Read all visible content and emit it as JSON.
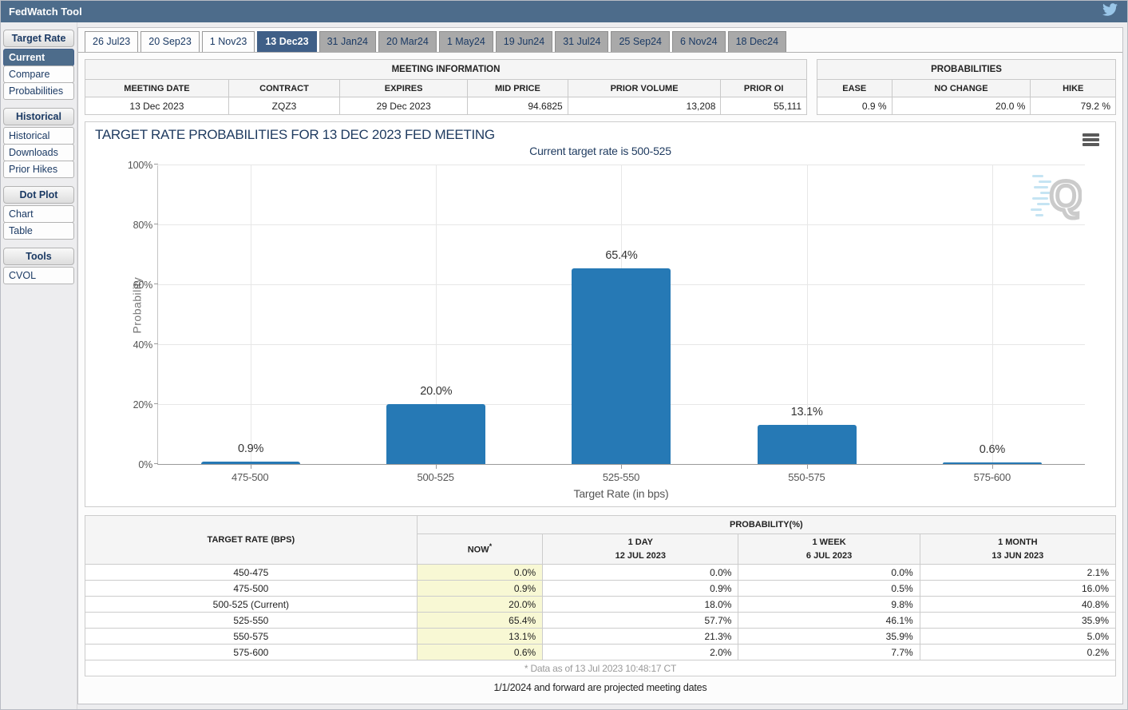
{
  "colors": {
    "header_bg": "#4d6c8b",
    "selected_tab_bg": "#3f5f87",
    "bar_color": "#2679b5",
    "now_highlight": "#f8f8d4",
    "twitter_blue": "#9ac6e8"
  },
  "header": {
    "title": "FedWatch Tool",
    "icon": "twitter-bird-icon"
  },
  "sidebar": {
    "sections": [
      {
        "header": "Target Rate",
        "items": [
          {
            "label": "Current",
            "selected": true
          },
          {
            "label": "Compare",
            "selected": false
          },
          {
            "label": "Probabilities",
            "selected": false
          }
        ]
      },
      {
        "header": "Historical",
        "items": [
          {
            "label": "Historical",
            "selected": false
          },
          {
            "label": "Downloads",
            "selected": false
          },
          {
            "label": "Prior Hikes",
            "selected": false
          }
        ]
      },
      {
        "header": "Dot Plot",
        "items": [
          {
            "label": "Chart",
            "selected": false
          },
          {
            "label": "Table",
            "selected": false
          }
        ]
      },
      {
        "header": "Tools",
        "items": [
          {
            "label": "CVOL",
            "selected": false
          }
        ]
      }
    ]
  },
  "tabs": [
    {
      "label": "26 Jul23",
      "variant": "light"
    },
    {
      "label": "20 Sep23",
      "variant": "light"
    },
    {
      "label": "1 Nov23",
      "variant": "light"
    },
    {
      "label": "13 Dec23",
      "variant": "selected"
    },
    {
      "label": "31 Jan24",
      "variant": "gray"
    },
    {
      "label": "20 Mar24",
      "variant": "gray"
    },
    {
      "label": "1 May24",
      "variant": "gray"
    },
    {
      "label": "19 Jun24",
      "variant": "gray"
    },
    {
      "label": "31 Jul24",
      "variant": "gray"
    },
    {
      "label": "25 Sep24",
      "variant": "gray"
    },
    {
      "label": "6 Nov24",
      "variant": "gray"
    },
    {
      "label": "18 Dec24",
      "variant": "gray"
    }
  ],
  "meeting_info": {
    "title": "MEETING INFORMATION",
    "columns": [
      "MEETING DATE",
      "CONTRACT",
      "EXPIRES",
      "MID PRICE",
      "PRIOR VOLUME",
      "PRIOR OI"
    ],
    "values": [
      "13 Dec 2023",
      "ZQZ3",
      "29 Dec 2023",
      "94.6825",
      "13,208",
      "55,111"
    ],
    "aligns": [
      "center",
      "center",
      "center",
      "right",
      "right",
      "right"
    ],
    "col_widths": [
      "19.9%",
      "15.4%",
      "17.7%",
      "13.9%",
      "21.2%",
      "11.9%"
    ]
  },
  "probabilities_summary": {
    "title": "PROBABILITIES",
    "columns": [
      "EASE",
      "NO CHANGE",
      "HIKE"
    ],
    "values": [
      "0.9 %",
      "20.0 %",
      "79.2 %"
    ],
    "col_widths": [
      "25%",
      "46.5%",
      "28.5%"
    ]
  },
  "chart": {
    "menu_icon": "hamburger-menu-icon",
    "watermark_letter": "Q"
  },
  "chart_data": {
    "type": "bar",
    "title": "TARGET RATE PROBABILITIES FOR 13 DEC 2023 FED MEETING",
    "subtitle": "Current target rate is 500-525",
    "categories": [
      "475-500",
      "500-525",
      "525-550",
      "550-575",
      "575-600"
    ],
    "values": [
      0.9,
      20.0,
      65.4,
      13.1,
      0.6
    ],
    "bar_labels": [
      "0.9%",
      "20.0%",
      "65.4%",
      "13.1%",
      "0.6%"
    ],
    "xlabel": "Target Rate (in bps)",
    "ylabel": "Probability",
    "ylim": [
      0,
      100
    ],
    "yticks": [
      0,
      20,
      40,
      60,
      80,
      100
    ],
    "ytick_labels": [
      "0%",
      "20%",
      "40%",
      "60%",
      "80%",
      "100%"
    ],
    "grid": true,
    "legend": false,
    "bar_color": "#2679b5"
  },
  "probability_table": {
    "corner_header": "TARGET RATE (BPS)",
    "group_header": "PROBABILITY(%)",
    "columns": [
      {
        "line1": "NOW",
        "sup": "*",
        "line2": ""
      },
      {
        "line1": "1 DAY",
        "line2": "12 JUL 2023"
      },
      {
        "line1": "1 WEEK",
        "line2": "6 JUL 2023"
      },
      {
        "line1": "1 MONTH",
        "line2": "13 JUN 2023"
      }
    ],
    "rows": [
      {
        "rate": "450-475",
        "values": [
          "0.0%",
          "0.0%",
          "0.0%",
          "2.1%"
        ]
      },
      {
        "rate": "475-500",
        "values": [
          "0.9%",
          "0.9%",
          "0.5%",
          "16.0%"
        ]
      },
      {
        "rate": "500-525 (Current)",
        "values": [
          "20.0%",
          "18.0%",
          "9.8%",
          "40.8%"
        ]
      },
      {
        "rate": "525-550",
        "values": [
          "65.4%",
          "57.7%",
          "46.1%",
          "35.9%"
        ]
      },
      {
        "rate": "550-575",
        "values": [
          "13.1%",
          "21.3%",
          "35.9%",
          "5.0%"
        ]
      },
      {
        "rate": "575-600",
        "values": [
          "0.6%",
          "2.0%",
          "7.7%",
          "0.2%"
        ]
      }
    ],
    "footnote": "* Data as of 13 Jul 2023 10:48:17 CT"
  },
  "projection_note": "1/1/2024 and forward are projected meeting dates"
}
